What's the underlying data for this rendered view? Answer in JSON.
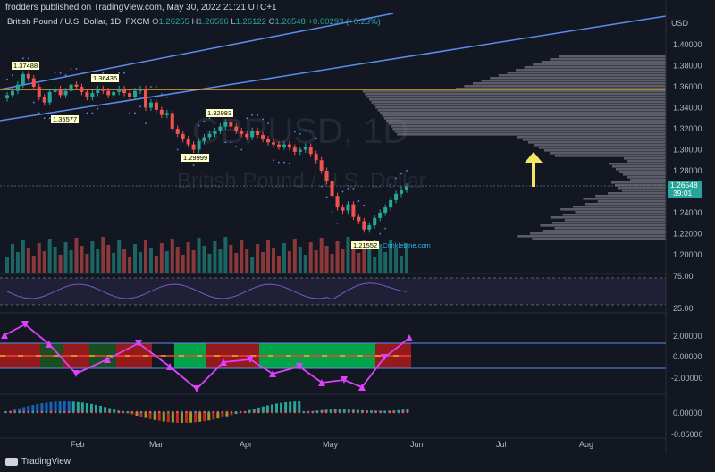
{
  "header": {
    "published": "frodders published on TradingView.com, May 30, 2022 21:21 UTC+1"
  },
  "legend": {
    "symbol": "British Pound / U.S. Dollar, 1D, FXCM",
    "o_label": "O",
    "o": "1.26255",
    "h_label": "H",
    "h": "1.26596",
    "l_label": "L",
    "l": "1.26122",
    "c_label": "C",
    "c": "1.26548",
    "change": "+0.00293 (+0.23%)"
  },
  "watermark": {
    "ticker": "GBPUSD, 1D",
    "name": "British Pound / U.S. Dollar"
  },
  "price_axis": {
    "currency": "USD",
    "ticks": [
      "1.40000",
      "1.38000",
      "1.36000",
      "1.34000",
      "1.32000",
      "1.30000",
      "1.28000",
      "1.26000",
      "1.24000",
      "1.22000",
      "1.20000"
    ],
    "last_price": "1.26548",
    "countdown": "39:01"
  },
  "rsi_axis": {
    "ticks": [
      "75.00",
      "25.00"
    ]
  },
  "osc_axis": {
    "ticks": [
      "2.00000",
      "0.00000",
      "-2.00000"
    ]
  },
  "hist_axis": {
    "ticks": [
      "0.00000",
      "-0.05000"
    ]
  },
  "time_axis": {
    "ticks": [
      "Feb",
      "Mar",
      "Apr",
      "May",
      "Jun",
      "Jul",
      "Aug"
    ]
  },
  "price_labels": [
    "1.37488",
    "1.36435",
    "1.35577",
    "1.32983",
    "1.29999",
    "1.21552"
  ],
  "annotation": "Crinklebine.com",
  "footer": {
    "brand": "TradingView"
  },
  "colors": {
    "background": "#131722",
    "up": "#26a69a",
    "down": "#ef5350",
    "channel": "#5b8def",
    "orange_line": "#f5a623",
    "arrow": "#f5e663",
    "magenta": "#e040fb",
    "rsi": "#7e57c2",
    "label_bg": "#ffffcc"
  }
}
